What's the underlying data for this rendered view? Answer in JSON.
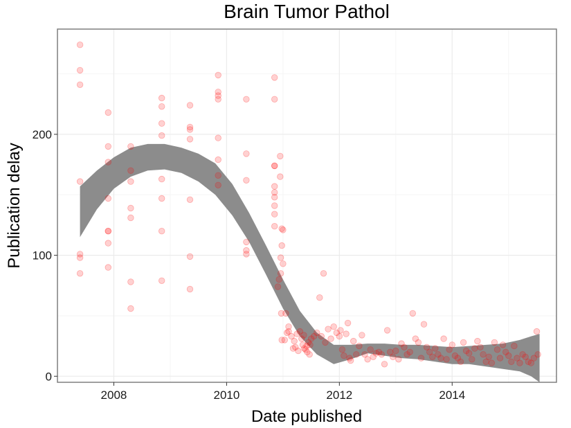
{
  "chart_data": {
    "type": "scatter",
    "title": "Brain Tumor Pathol",
    "xlabel": "Date published",
    "ylabel": "Publication delay",
    "xlim": [
      2007.0,
      2015.85
    ],
    "ylim": [
      -5,
      287
    ],
    "x_ticks": [
      "2008",
      "2010",
      "2012",
      "2014"
    ],
    "y_ticks": [
      "0",
      "100",
      "200"
    ],
    "x_tick_values": [
      2008,
      2010,
      2012,
      2014
    ],
    "y_tick_values": [
      0,
      100,
      200
    ],
    "grid": true,
    "legend": "none",
    "colors": {
      "points": "#ff0000",
      "points_opacity": 0.18,
      "ribbon": "#8c8c8c",
      "panel_border": "#7f7f7f",
      "grid_major": "#ebebeb",
      "grid_minor": "#f5f5f5"
    },
    "points": [
      [
        2007.4,
        274
      ],
      [
        2007.4,
        253
      ],
      [
        2007.4,
        241
      ],
      [
        2007.4,
        161
      ],
      [
        2007.4,
        101
      ],
      [
        2007.4,
        98
      ],
      [
        2007.4,
        85
      ],
      [
        2007.9,
        218
      ],
      [
        2007.9,
        190
      ],
      [
        2007.9,
        177
      ],
      [
        2007.9,
        147
      ],
      [
        2007.9,
        120
      ],
      [
        2007.9,
        120
      ],
      [
        2007.9,
        110
      ],
      [
        2007.9,
        90
      ],
      [
        2008.3,
        190
      ],
      [
        2008.3,
        170
      ],
      [
        2008.3,
        161
      ],
      [
        2008.3,
        139
      ],
      [
        2008.3,
        131
      ],
      [
        2008.3,
        78
      ],
      [
        2008.3,
        56
      ],
      [
        2008.85,
        230
      ],
      [
        2008.85,
        223
      ],
      [
        2008.85,
        209
      ],
      [
        2008.85,
        199
      ],
      [
        2008.85,
        163
      ],
      [
        2008.85,
        147
      ],
      [
        2008.85,
        120
      ],
      [
        2008.85,
        79
      ],
      [
        2009.35,
        224
      ],
      [
        2009.35,
        206
      ],
      [
        2009.35,
        204
      ],
      [
        2009.35,
        196
      ],
      [
        2009.35,
        146
      ],
      [
        2009.35,
        99
      ],
      [
        2009.35,
        72
      ],
      [
        2009.85,
        249
      ],
      [
        2009.85,
        235
      ],
      [
        2009.85,
        232
      ],
      [
        2009.85,
        229
      ],
      [
        2009.85,
        197
      ],
      [
        2009.85,
        179
      ],
      [
        2009.85,
        166
      ],
      [
        2009.85,
        158
      ],
      [
        2010.35,
        229
      ],
      [
        2010.35,
        184
      ],
      [
        2010.35,
        162
      ],
      [
        2010.35,
        111
      ],
      [
        2010.35,
        104
      ],
      [
        2010.35,
        101
      ],
      [
        2010.85,
        247
      ],
      [
        2010.85,
        229
      ],
      [
        2010.85,
        174
      ],
      [
        2010.85,
        174
      ],
      [
        2010.85,
        157
      ],
      [
        2010.85,
        152
      ],
      [
        2010.85,
        148
      ],
      [
        2010.85,
        141
      ],
      [
        2010.85,
        134
      ],
      [
        2010.85,
        124
      ],
      [
        2010.95,
        182
      ],
      [
        2010.95,
        165
      ],
      [
        2010.98,
        122
      ],
      [
        2011.0,
        121
      ],
      [
        2010.98,
        108
      ],
      [
        2010.96,
        98
      ],
      [
        2011.0,
        93
      ],
      [
        2010.96,
        85
      ],
      [
        2010.93,
        80
      ],
      [
        2010.91,
        74
      ],
      [
        2010.97,
        52
      ],
      [
        2011.05,
        52
      ],
      [
        2010.98,
        30
      ],
      [
        2011.03,
        30
      ],
      [
        2011.1,
        41
      ],
      [
        2011.07,
        36
      ],
      [
        2011.1,
        37
      ],
      [
        2011.15,
        33
      ],
      [
        2011.2,
        29
      ],
      [
        2011.25,
        35
      ],
      [
        2011.3,
        37
      ],
      [
        2011.35,
        26
      ],
      [
        2011.4,
        22
      ],
      [
        2011.45,
        28
      ],
      [
        2011.5,
        31
      ],
      [
        2011.55,
        33
      ],
      [
        2011.6,
        36
      ],
      [
        2011.22,
        24
      ],
      [
        2011.27,
        21
      ],
      [
        2011.33,
        31
      ],
      [
        2011.37,
        34
      ],
      [
        2011.42,
        25
      ],
      [
        2011.47,
        18
      ],
      [
        2011.18,
        23
      ],
      [
        2011.38,
        23
      ],
      [
        2011.43,
        20
      ],
      [
        2011.48,
        26
      ],
      [
        2011.65,
        65
      ],
      [
        2011.72,
        85
      ],
      [
        2011.68,
        33
      ],
      [
        2011.75,
        28
      ],
      [
        2011.8,
        39
      ],
      [
        2011.85,
        31
      ],
      [
        2011.9,
        41
      ],
      [
        2011.95,
        36
      ],
      [
        2012.0,
        33
      ],
      [
        2012.02,
        38
      ],
      [
        2012.05,
        22
      ],
      [
        2012.08,
        17
      ],
      [
        2012.12,
        35
      ],
      [
        2012.15,
        44
      ],
      [
        2012.18,
        15
      ],
      [
        2012.2,
        13
      ],
      [
        2012.25,
        29
      ],
      [
        2012.3,
        18
      ],
      [
        2012.35,
        25
      ],
      [
        2012.4,
        34
      ],
      [
        2012.45,
        18
      ],
      [
        2012.5,
        14
      ],
      [
        2012.55,
        22
      ],
      [
        2012.6,
        16
      ],
      [
        2012.65,
        19
      ],
      [
        2012.7,
        20
      ],
      [
        2012.75,
        18
      ],
      [
        2012.8,
        10
      ],
      [
        2012.85,
        38
      ],
      [
        2012.9,
        20
      ],
      [
        2012.95,
        16
      ],
      [
        2013.0,
        21
      ],
      [
        2013.05,
        14
      ],
      [
        2013.1,
        27
      ],
      [
        2013.15,
        24
      ],
      [
        2013.2,
        18
      ],
      [
        2013.25,
        20
      ],
      [
        2013.3,
        52
      ],
      [
        2013.35,
        31
      ],
      [
        2013.4,
        28
      ],
      [
        2013.45,
        15
      ],
      [
        2013.5,
        43
      ],
      [
        2013.55,
        24
      ],
      [
        2013.6,
        20
      ],
      [
        2013.65,
        16
      ],
      [
        2013.7,
        23
      ],
      [
        2013.75,
        18
      ],
      [
        2013.8,
        15
      ],
      [
        2013.85,
        31
      ],
      [
        2013.9,
        14
      ],
      [
        2013.95,
        22
      ],
      [
        2014.0,
        26
      ],
      [
        2014.05,
        17
      ],
      [
        2014.1,
        15
      ],
      [
        2014.15,
        12
      ],
      [
        2014.2,
        28
      ],
      [
        2014.25,
        21
      ],
      [
        2014.3,
        19
      ],
      [
        2014.35,
        14
      ],
      [
        2014.4,
        23
      ],
      [
        2014.45,
        29
      ],
      [
        2014.5,
        24
      ],
      [
        2014.55,
        18
      ],
      [
        2014.6,
        12
      ],
      [
        2014.65,
        16
      ],
      [
        2014.7,
        11
      ],
      [
        2014.75,
        28
      ],
      [
        2014.8,
        22
      ],
      [
        2014.85,
        15
      ],
      [
        2014.9,
        26
      ],
      [
        2014.95,
        20
      ],
      [
        2015.0,
        17
      ],
      [
        2015.05,
        12
      ],
      [
        2015.1,
        25
      ],
      [
        2015.15,
        15
      ],
      [
        2015.2,
        11
      ],
      [
        2015.25,
        18
      ],
      [
        2015.3,
        16
      ],
      [
        2015.35,
        12
      ],
      [
        2015.4,
        11
      ],
      [
        2015.45,
        15
      ],
      [
        2015.5,
        37
      ],
      [
        2015.52,
        18
      ]
    ],
    "smooth_band": {
      "x": [
        2007.4,
        2007.7,
        2008.0,
        2008.3,
        2008.6,
        2008.9,
        2009.2,
        2009.5,
        2009.8,
        2010.1,
        2010.4,
        2010.7,
        2011.0,
        2011.3,
        2011.6,
        2011.9,
        2012.2,
        2012.5,
        2012.8,
        2013.1,
        2013.4,
        2013.7,
        2014.0,
        2014.3,
        2014.6,
        2014.9,
        2015.2,
        2015.4,
        2015.55
      ],
      "lower": [
        115,
        138,
        155,
        165,
        170,
        171,
        168,
        161,
        150,
        133,
        111,
        84,
        56,
        33,
        18,
        10,
        14,
        19,
        17,
        15,
        14,
        12,
        10,
        10,
        8,
        6,
        4,
        0,
        -5
      ],
      "upper": [
        157,
        170,
        181,
        189,
        192,
        192,
        189,
        184,
        176,
        159,
        135,
        108,
        80,
        54,
        36,
        26,
        26,
        27,
        27,
        26,
        26,
        25,
        24,
        25,
        26,
        27,
        30,
        33,
        35
      ]
    }
  }
}
